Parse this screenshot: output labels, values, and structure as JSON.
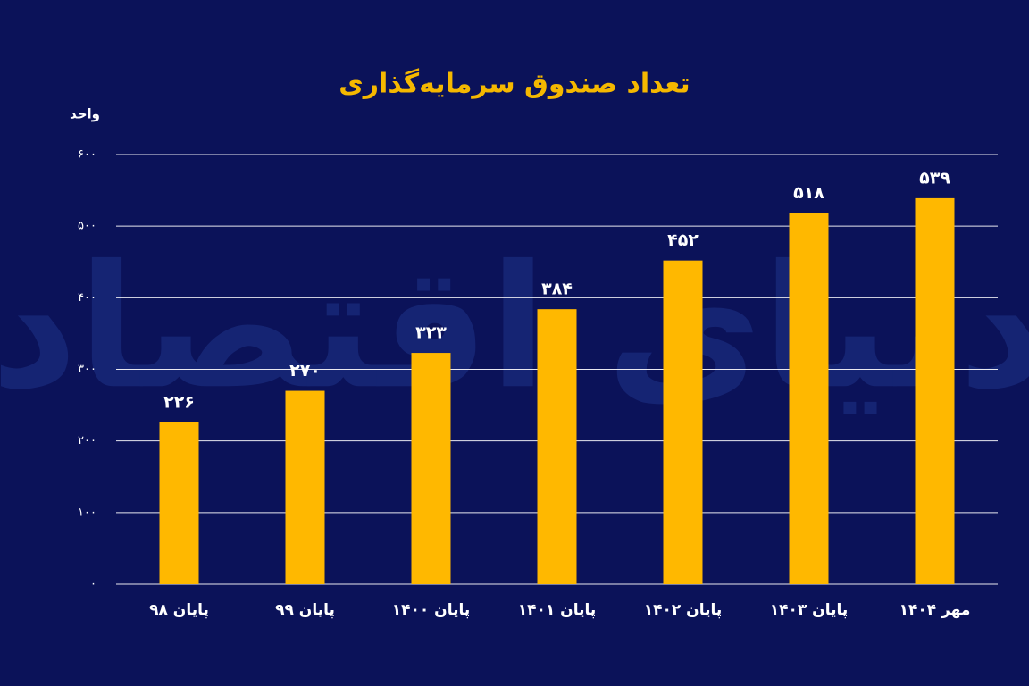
{
  "chart_data": {
    "type": "bar",
    "title": "تعداد صندوق سرمایه‌گذاری",
    "y_label": "واحد",
    "watermark": "دنیای اقتصاد",
    "categories": [
      "پایان ۹۸",
      "پایان ۹۹",
      "پایان ۱۴۰۰",
      "پایان ۱۴۰۱",
      "پایان ۱۴۰۲",
      "پایان ۱۴۰۳",
      "مهر ۱۴۰۴"
    ],
    "values": [
      226,
      270,
      323,
      384,
      452,
      518,
      539
    ],
    "value_labels": [
      "۲۲۶",
      "۲۷۰",
      "۳۲۳",
      "۳۸۴",
      "۴۵۲",
      "۵۱۸",
      "۵۳۹"
    ],
    "color": "#ffb800",
    "ylim": [
      0,
      600
    ],
    "yticks": [
      {
        "value": 0,
        "label": "۰"
      },
      {
        "value": 100,
        "label": "۱۰۰"
      },
      {
        "value": 200,
        "label": "۲۰۰"
      },
      {
        "value": 300,
        "label": "۳۰۰"
      },
      {
        "value": 400,
        "label": "۴۰۰"
      },
      {
        "value": 500,
        "label": "۵۰۰"
      },
      {
        "value": 600,
        "label": "۶۰۰"
      }
    ],
    "grid": true
  }
}
